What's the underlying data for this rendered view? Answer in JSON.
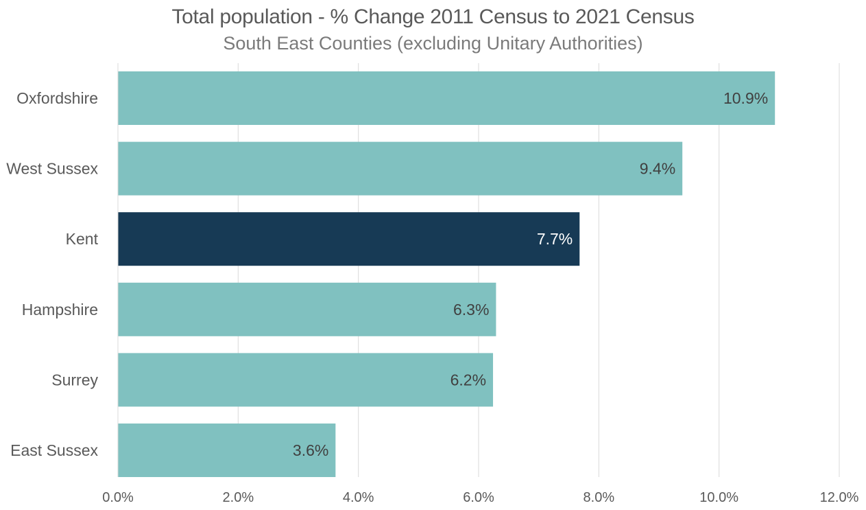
{
  "chart_data": {
    "type": "bar",
    "orientation": "horizontal",
    "title": "Total population - % Change 2011 Census to 2021 Census",
    "subtitle": "South East Counties (excluding Unitary Authorities)",
    "categories": [
      "Oxfordshire",
      "West Sussex",
      "Kent",
      "Hampshire",
      "Surrey",
      "East Sussex"
    ],
    "values": [
      10.93,
      9.39,
      7.68,
      6.29,
      6.24,
      3.62
    ],
    "data_labels": [
      "10.9%",
      "9.4%",
      "7.7%",
      "6.3%",
      "6.2%",
      "3.6%"
    ],
    "highlight": "Kent",
    "x_ticks": [
      0,
      2,
      4,
      6,
      8,
      10,
      12
    ],
    "x_tick_labels": [
      "0.0%",
      "2.0%",
      "4.0%",
      "6.0%",
      "8.0%",
      "10.0%",
      "12.0%"
    ],
    "xlim": [
      0,
      12
    ],
    "xlabel": "",
    "ylabel": "",
    "grid": "vertical",
    "legend": "none",
    "colors": {
      "bar": "#80c1c0",
      "highlight": "#173a55",
      "label_dark": "#404040",
      "label_light": "#ffffff",
      "grid": "#d9d9d9",
      "axis_text": "#595959"
    }
  }
}
